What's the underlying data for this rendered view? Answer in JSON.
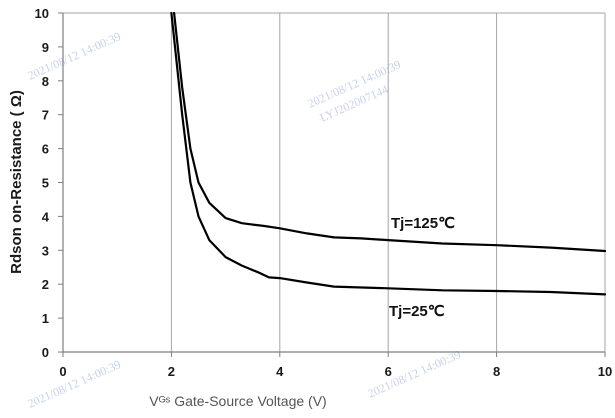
{
  "chart_data": {
    "type": "line",
    "xlabel": "Vᴳˢ Gate-Source Voltage (V)",
    "ylabel": "Rdson on-Resistance ( Ω)",
    "xlim": [
      0,
      10
    ],
    "ylim": [
      0,
      10
    ],
    "x_ticks": [
      "0",
      "2",
      "4",
      "6",
      "8",
      "10"
    ],
    "y_ticks": [
      "0",
      "1",
      "2",
      "3",
      "4",
      "5",
      "6",
      "7",
      "8",
      "9",
      "10"
    ],
    "grid": true,
    "series": [
      {
        "name": "Tj=125℃",
        "color": "#000000",
        "x": [
          2.05,
          2.2,
          2.35,
          2.5,
          2.7,
          3.0,
          3.3,
          3.7,
          4.0,
          4.5,
          5.0,
          5.5,
          6.0,
          7.0,
          8.0,
          9.0,
          10.0
        ],
        "y": [
          10.0,
          7.8,
          6.0,
          5.0,
          4.4,
          3.95,
          3.8,
          3.72,
          3.65,
          3.5,
          3.38,
          3.35,
          3.3,
          3.2,
          3.15,
          3.08,
          2.98
        ]
      },
      {
        "name": "Tj=25℃",
        "color": "#000000",
        "x": [
          2.0,
          2.2,
          2.35,
          2.5,
          2.7,
          3.0,
          3.3,
          3.6,
          3.8,
          4.0,
          4.5,
          5.0,
          6.0,
          7.0,
          8.0,
          9.0,
          10.0
        ],
        "y": [
          10.0,
          7.0,
          5.0,
          4.0,
          3.3,
          2.8,
          2.55,
          2.35,
          2.2,
          2.18,
          2.05,
          1.93,
          1.88,
          1.82,
          1.8,
          1.77,
          1.7
        ]
      }
    ],
    "annotations": [
      "Tj=125℃",
      "Tj=25℃"
    ]
  },
  "watermarks": [
    "2021/08/12 14:00:39",
    "LYJ202007144"
  ],
  "style": {
    "line_color": "#000000",
    "grid_color": "#a6a6a6",
    "axis_color": "#7f7f7f",
    "watermark_color": "#c8d3ea"
  }
}
